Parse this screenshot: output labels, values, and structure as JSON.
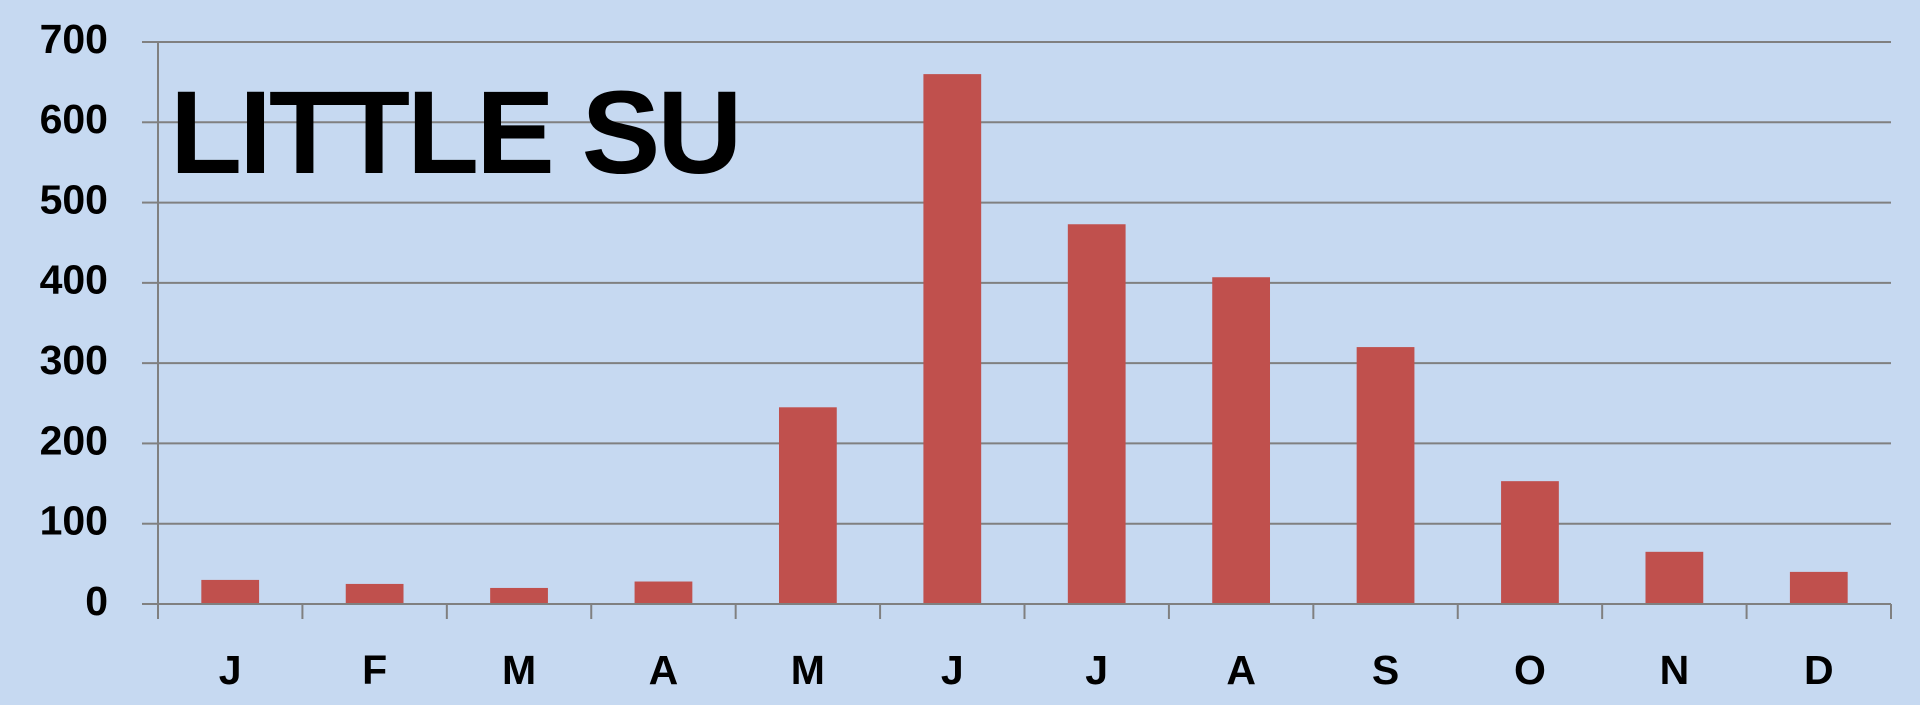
{
  "chart_data": {
    "type": "bar",
    "title": "LITTLE SU",
    "categories": [
      "J",
      "F",
      "M",
      "A",
      "M",
      "J",
      "J",
      "A",
      "S",
      "O",
      "N",
      "D"
    ],
    "values": [
      30,
      25,
      20,
      28,
      245,
      660,
      473,
      407,
      320,
      153,
      65,
      40
    ],
    "color": "#c0504d",
    "ylim": [
      0,
      700
    ],
    "yticks": [
      0,
      100,
      200,
      300,
      400,
      500,
      600,
      700
    ],
    "grid": true
  }
}
